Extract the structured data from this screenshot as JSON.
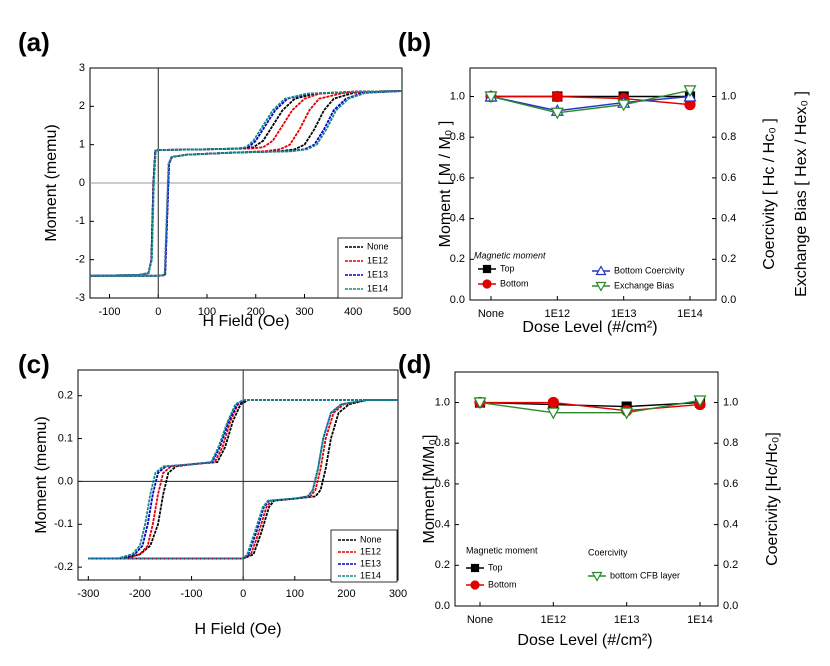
{
  "chart_data": [
    {
      "type": "line",
      "panel_label": "(a)",
      "xlabel": "H Field (Oe)",
      "ylabel": "Moment (memu)",
      "xlim": [
        -140,
        500
      ],
      "ylim": [
        -3,
        3
      ],
      "xticks": [
        -100,
        0,
        100,
        200,
        300,
        400,
        500
      ],
      "yticks": [
        -3,
        -2,
        -1,
        0,
        1,
        2,
        3
      ],
      "zero_lines": true,
      "grid": false,
      "legend": "lower right",
      "series": [
        {
          "name": "None",
          "color": "#000000",
          "x": [
            500,
            400,
            320,
            280,
            255,
            235,
            215,
            195,
            170,
            100,
            0,
            -6,
            -10,
            -14,
            -20,
            -40,
            -140,
            -140,
            0,
            14,
            18,
            22,
            28,
            60,
            150,
            250,
            280,
            300,
            320,
            340,
            360,
            400,
            500
          ],
          "values": [
            2.4,
            2.38,
            2.33,
            2.2,
            1.9,
            1.5,
            1.1,
            0.93,
            0.9,
            0.88,
            0.86,
            0.84,
            0.0,
            -2.0,
            -2.35,
            -2.4,
            -2.42,
            -2.42,
            -2.42,
            -2.4,
            -1.0,
            0.5,
            0.68,
            0.74,
            0.79,
            0.83,
            0.88,
            1.0,
            1.4,
            1.9,
            2.2,
            2.35,
            2.4
          ]
        },
        {
          "name": "1E12",
          "color": "#e00000",
          "x": [
            500,
            400,
            330,
            300,
            275,
            255,
            235,
            215,
            190,
            100,
            0,
            -6,
            -10,
            -14,
            -20,
            -40,
            -140,
            -140,
            0,
            14,
            18,
            22,
            28,
            60,
            150,
            220,
            250,
            270,
            290,
            310,
            330,
            380,
            500
          ],
          "values": [
            2.4,
            2.38,
            2.33,
            2.2,
            1.9,
            1.5,
            1.1,
            0.93,
            0.9,
            0.88,
            0.86,
            0.84,
            0.0,
            -2.0,
            -2.35,
            -2.4,
            -2.42,
            -2.42,
            -2.42,
            -2.4,
            -1.0,
            0.5,
            0.68,
            0.74,
            0.79,
            0.83,
            0.88,
            1.0,
            1.4,
            1.9,
            2.2,
            2.35,
            2.4
          ]
        },
        {
          "name": "1E13",
          "color": "#0000cc",
          "x": [
            500,
            400,
            310,
            265,
            240,
            220,
            200,
            185,
            165,
            100,
            0,
            -6,
            -10,
            -14,
            -20,
            -40,
            -140,
            -140,
            0,
            14,
            18,
            22,
            28,
            60,
            150,
            270,
            300,
            320,
            340,
            360,
            385,
            420,
            500
          ],
          "values": [
            2.4,
            2.38,
            2.33,
            2.2,
            1.9,
            1.5,
            1.1,
            0.93,
            0.9,
            0.88,
            0.86,
            0.84,
            0.0,
            -2.0,
            -2.35,
            -2.4,
            -2.42,
            -2.42,
            -2.42,
            -2.4,
            -1.0,
            0.5,
            0.68,
            0.74,
            0.79,
            0.83,
            0.88,
            1.0,
            1.4,
            1.9,
            2.2,
            2.35,
            2.4
          ]
        },
        {
          "name": "1E14",
          "color": "#138a8a",
          "x": [
            500,
            400,
            305,
            260,
            235,
            215,
            195,
            180,
            160,
            100,
            0,
            -5,
            -9,
            -13,
            -20,
            -40,
            -140,
            -140,
            0,
            13,
            17,
            21,
            27,
            60,
            150,
            275,
            305,
            325,
            345,
            365,
            390,
            425,
            500
          ],
          "values": [
            2.4,
            2.38,
            2.33,
            2.2,
            1.9,
            1.5,
            1.1,
            0.93,
            0.9,
            0.88,
            0.86,
            0.84,
            0.0,
            -2.0,
            -2.35,
            -2.4,
            -2.42,
            -2.42,
            -2.42,
            -2.4,
            -1.0,
            0.5,
            0.68,
            0.74,
            0.79,
            0.83,
            0.88,
            1.0,
            1.4,
            1.9,
            2.2,
            2.35,
            2.4
          ]
        }
      ]
    },
    {
      "type": "line",
      "panel_label": "(b)",
      "xlabel": "Dose Level (#/cm²)",
      "ylabel": "Moment  [ M / M₀ ]",
      "y2labels": [
        "Coercivity [ Hc / Hc₀ ]",
        "Exchange Bias  [ Hex / Hex₀ ]"
      ],
      "categories": [
        "None",
        "1E12",
        "1E13",
        "1E14"
      ],
      "ylim": [
        0,
        1.14
      ],
      "y2lim": [
        0,
        1.14
      ],
      "yticks": [
        {
          "value": 0,
          "label": "0.0"
        },
        0.2,
        0.4,
        0.6,
        0.8,
        {
          "value": 1,
          "label": "1.0"
        }
      ],
      "y2ticks": [
        {
          "value": 0,
          "label": "0.0"
        },
        0.2,
        0.4,
        0.6,
        0.8,
        {
          "value": 1,
          "label": "1.0"
        }
      ],
      "legend_titles": [
        "Magnetic moment"
      ],
      "grid": false,
      "series": [
        {
          "name": "Top",
          "color": "#000000",
          "marker": "square",
          "filled": true,
          "values": [
            1.0,
            1.0,
            1.0,
            1.0
          ]
        },
        {
          "name": "Bottom",
          "color": "#e00000",
          "marker": "circle",
          "filled": true,
          "values": [
            1.0,
            1.0,
            0.99,
            0.96
          ]
        },
        {
          "name": "Bottom Coercivity",
          "color": "#2233cc",
          "marker": "triangle-up",
          "filled": false,
          "axis": "y2",
          "values": [
            1.0,
            0.93,
            0.97,
            1.0
          ]
        },
        {
          "name": "Exchange Bias",
          "color": "#2a8a2a",
          "marker": "triangle-down",
          "filled": false,
          "axis": "y2",
          "values": [
            1.0,
            0.92,
            0.96,
            1.03
          ]
        }
      ]
    },
    {
      "type": "line",
      "panel_label": "(c)",
      "xlabel": "H Field (Oe)",
      "ylabel": "Moment (memu)",
      "xlim": [
        -320,
        300
      ],
      "ylim": [
        -0.23,
        0.26
      ],
      "xticks": [
        -300,
        -200,
        -100,
        0,
        100,
        200,
        300
      ],
      "yticks": [
        -0.2,
        -0.1,
        {
          "value": 0,
          "label": "0.0"
        },
        0.1,
        0.2
      ],
      "zero_lines": true,
      "grid": false,
      "legend": "lower right",
      "series": [
        {
          "name": "None",
          "color": "#000000",
          "x": [
            300,
            150,
            50,
            10,
            -5,
            -20,
            -35,
            -50,
            -100,
            -130,
            -145,
            -155,
            -165,
            -180,
            -200,
            -230,
            -300,
            -300,
            0,
            20,
            35,
            50,
            60,
            100,
            140,
            150,
            160,
            170,
            185,
            205,
            240,
            300
          ],
          "values": [
            0.19,
            0.19,
            0.19,
            0.19,
            0.18,
            0.14,
            0.08,
            0.045,
            0.04,
            0.035,
            0.02,
            -0.03,
            -0.1,
            -0.15,
            -0.17,
            -0.18,
            -0.18,
            -0.18,
            -0.18,
            -0.17,
            -0.12,
            -0.06,
            -0.045,
            -0.04,
            -0.035,
            -0.02,
            0.03,
            0.1,
            0.16,
            0.18,
            0.19,
            0.19
          ]
        },
        {
          "name": "1E12",
          "color": "#e00000",
          "x": [
            300,
            150,
            50,
            5,
            -10,
            -25,
            -40,
            -55,
            -100,
            -140,
            -155,
            -165,
            -175,
            -185,
            -200,
            -230,
            -300,
            -300,
            0,
            15,
            30,
            45,
            55,
            100,
            130,
            140,
            150,
            160,
            175,
            195,
            240,
            300
          ],
          "values": [
            0.19,
            0.19,
            0.19,
            0.19,
            0.18,
            0.14,
            0.08,
            0.045,
            0.04,
            0.035,
            0.02,
            -0.03,
            -0.1,
            -0.15,
            -0.17,
            -0.18,
            -0.18,
            -0.18,
            -0.18,
            -0.17,
            -0.12,
            -0.06,
            -0.045,
            -0.04,
            -0.035,
            -0.02,
            0.03,
            0.1,
            0.16,
            0.18,
            0.19,
            0.19
          ]
        },
        {
          "name": "1E13",
          "color": "#0000cc",
          "x": [
            300,
            150,
            50,
            5,
            -12,
            -28,
            -45,
            -60,
            -100,
            -150,
            -165,
            -175,
            -185,
            -195,
            -210,
            -240,
            -300,
            -300,
            0,
            10,
            25,
            40,
            50,
            100,
            125,
            135,
            145,
            155,
            170,
            190,
            240,
            300
          ],
          "values": [
            0.19,
            0.19,
            0.19,
            0.19,
            0.18,
            0.14,
            0.08,
            0.045,
            0.04,
            0.035,
            0.02,
            -0.03,
            -0.1,
            -0.15,
            -0.17,
            -0.18,
            -0.18,
            -0.18,
            -0.18,
            -0.17,
            -0.12,
            -0.06,
            -0.045,
            -0.04,
            -0.035,
            -0.02,
            0.03,
            0.1,
            0.16,
            0.18,
            0.19,
            0.19
          ]
        },
        {
          "name": "1E14",
          "color": "#138a8a",
          "x": [
            300,
            150,
            50,
            0,
            -15,
            -30,
            -48,
            -62,
            -100,
            -155,
            -170,
            -180,
            -190,
            -200,
            -215,
            -245,
            -300,
            -300,
            0,
            8,
            22,
            38,
            48,
            100,
            125,
            135,
            145,
            155,
            170,
            190,
            240,
            300
          ],
          "values": [
            0.19,
            0.19,
            0.19,
            0.19,
            0.18,
            0.14,
            0.08,
            0.045,
            0.04,
            0.035,
            0.02,
            -0.03,
            -0.1,
            -0.15,
            -0.17,
            -0.18,
            -0.18,
            -0.18,
            -0.18,
            -0.17,
            -0.12,
            -0.06,
            -0.045,
            -0.04,
            -0.035,
            -0.02,
            0.03,
            0.1,
            0.16,
            0.18,
            0.19,
            0.19
          ]
        }
      ]
    },
    {
      "type": "line",
      "panel_label": "(d)",
      "xlabel": "Dose Level (#/cm²)",
      "ylabel": "Moment [M/M₀]",
      "y2labels": [
        "Coercivity [Hc/Hc₀]"
      ],
      "categories": [
        "None",
        "1E12",
        "1E13",
        "1E14"
      ],
      "ylim": [
        0,
        1.15
      ],
      "y2lim": [
        0,
        1.15
      ],
      "yticks": [
        {
          "value": 0,
          "label": "0.0"
        },
        0.2,
        0.4,
        0.6,
        0.8,
        {
          "value": 1,
          "label": "1.0"
        }
      ],
      "y2ticks": [
        {
          "value": 0,
          "label": "0.0"
        },
        0.2,
        0.4,
        0.6,
        0.8,
        {
          "value": 1,
          "label": "1.0"
        }
      ],
      "legend_titles": [
        "Magnetic moment",
        "Coercivity"
      ],
      "grid": false,
      "series": [
        {
          "name": "Top",
          "color": "#000000",
          "marker": "square",
          "filled": true,
          "values": [
            1.0,
            0.99,
            0.98,
            1.0
          ]
        },
        {
          "name": "Bottom",
          "color": "#e00000",
          "marker": "circle",
          "filled": true,
          "values": [
            1.0,
            1.0,
            0.96,
            0.99
          ]
        },
        {
          "name": "bottom CFB layer",
          "color": "#2a8a2a",
          "marker": "triangle-down",
          "filled": false,
          "axis": "y2",
          "values": [
            1.0,
            0.95,
            0.95,
            1.01
          ]
        }
      ]
    }
  ]
}
